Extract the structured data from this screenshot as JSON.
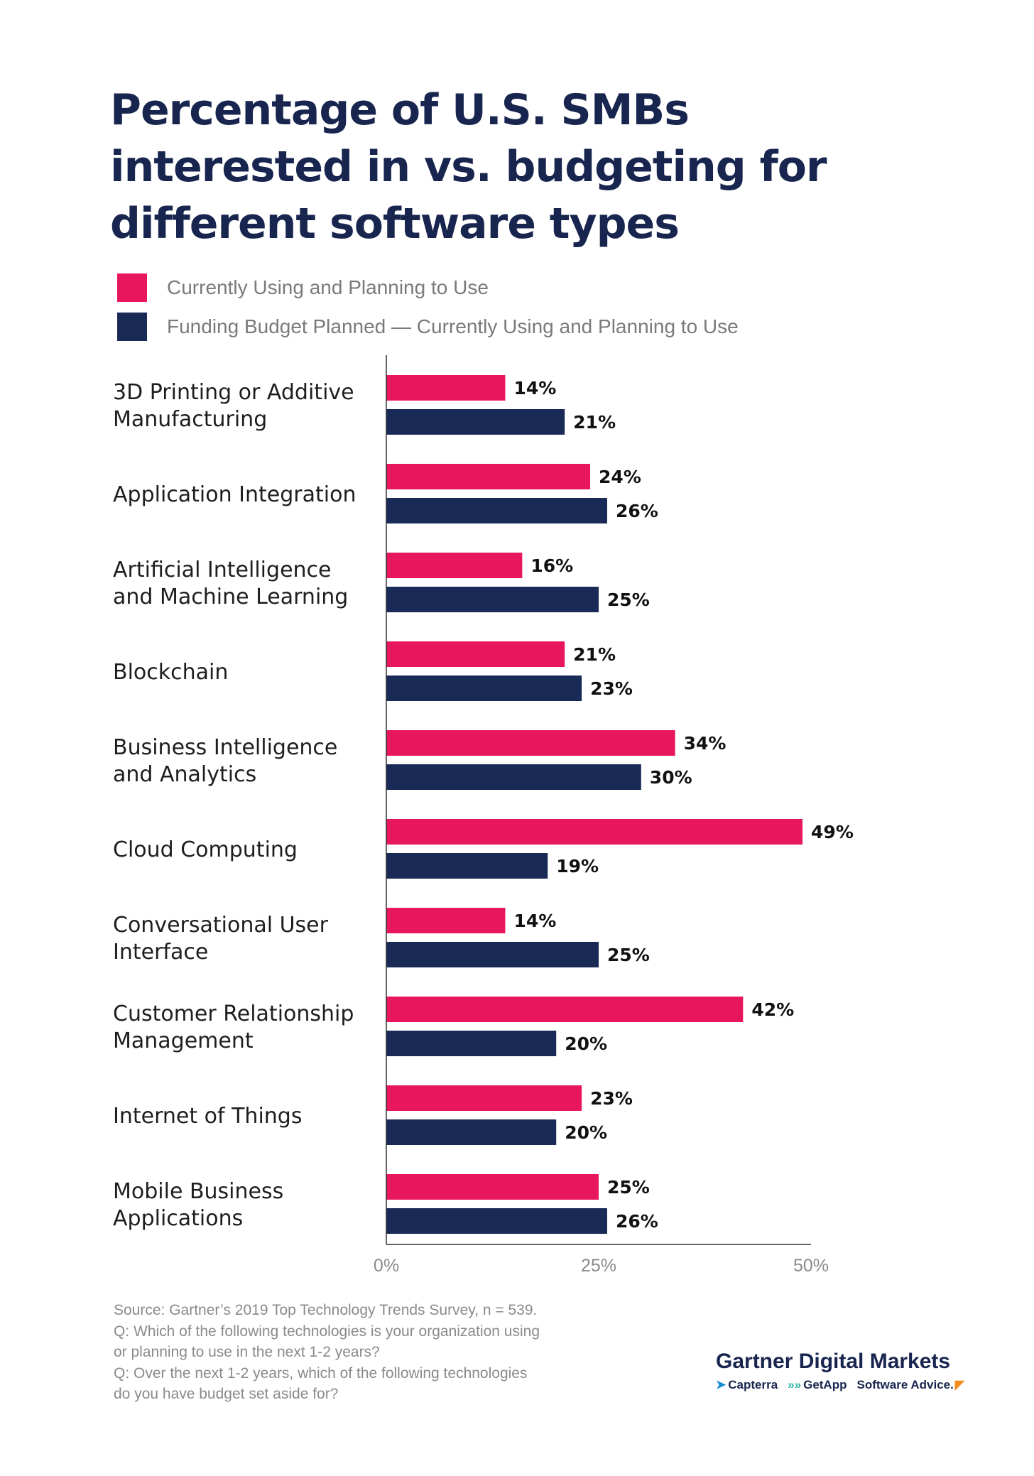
{
  "title_lines": [
    "Percentage of U.S. SMBs",
    "interested in vs. budgeting for",
    "different software types"
  ],
  "legend": [
    {
      "label": "Currently Using and Planning to Use",
      "color": "#e8175d"
    },
    {
      "label": "Funding Budget Planned — Currently Using and Planning to Use",
      "color": "#1a2a56"
    }
  ],
  "chart_data": {
    "type": "bar",
    "orientation": "horizontal",
    "categories": [
      [
        "3D Printing or Additive",
        "Manufacturing"
      ],
      [
        "Application Integration"
      ],
      [
        "Artificial Intelligence",
        "and Machine Learning"
      ],
      [
        "Blockchain"
      ],
      [
        "Business Intelligence",
        "and Analytics"
      ],
      [
        "Cloud Computing"
      ],
      [
        "Conversational User",
        "Interface"
      ],
      [
        "Customer Relationship",
        "Management"
      ],
      [
        "Internet of Things"
      ],
      [
        "Mobile Business",
        "Applications"
      ]
    ],
    "series": [
      {
        "name": "Currently Using and Planning to Use",
        "color": "#e8175d",
        "values": [
          14,
          24,
          16,
          21,
          34,
          49,
          14,
          42,
          23,
          25
        ]
      },
      {
        "name": "Funding Budget Planned — Currently Using and Planning to Use",
        "color": "#1a2a56",
        "values": [
          21,
          26,
          25,
          23,
          30,
          19,
          25,
          20,
          20,
          26
        ]
      }
    ],
    "xlim": [
      0,
      50
    ],
    "xticks": [
      0,
      25,
      50
    ],
    "xtick_labels": [
      "0%",
      "25%",
      "50%"
    ],
    "value_suffix": "%",
    "grid": false,
    "legend_position": "top-left"
  },
  "source_lines": [
    "Source: Gartner’s 2019 Top Technology Trends Survey, n = 539.",
    "Q: Which of the following technologies is your organization using",
    "or planning to use in the next 1-2 years?",
    "Q: Over the next 1-2 years, which of the following technologies",
    "do you have budget set aside for?"
  ],
  "brand": {
    "title": "Gartner Digital Markets",
    "logos": [
      "Capterra",
      "GetApp",
      "Software Advice."
    ]
  },
  "colors": {
    "title": "#18254e",
    "pink": "#e8175d",
    "navy": "#1a2a56",
    "muted_text": "#8a8a8a",
    "logo_accent": "#f28c1b",
    "getapp_accent": "#2cb3a9",
    "capterra_accent": "#1b8fd6"
  }
}
